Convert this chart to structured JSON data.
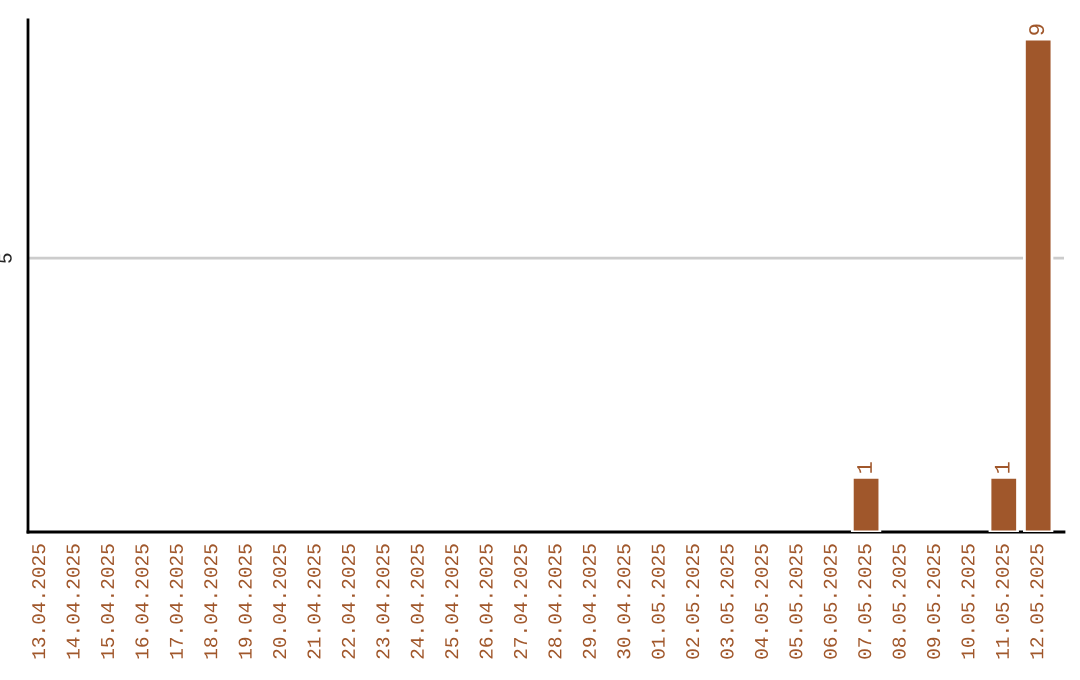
{
  "chart_data": {
    "type": "bar",
    "categories": [
      "13.04.2025",
      "14.04.2025",
      "15.04.2025",
      "16.04.2025",
      "17.04.2025",
      "18.04.2025",
      "19.04.2025",
      "20.04.2025",
      "21.04.2025",
      "22.04.2025",
      "23.04.2025",
      "24.04.2025",
      "25.04.2025",
      "26.04.2025",
      "27.04.2025",
      "28.04.2025",
      "29.04.2025",
      "30.04.2025",
      "01.05.2025",
      "02.05.2025",
      "03.05.2025",
      "04.05.2025",
      "05.05.2025",
      "06.05.2025",
      "07.05.2025",
      "08.05.2025",
      "09.05.2025",
      "10.05.2025",
      "11.05.2025",
      "12.05.2025"
    ],
    "values": [
      null,
      null,
      null,
      null,
      null,
      null,
      null,
      null,
      null,
      null,
      null,
      null,
      null,
      null,
      null,
      null,
      null,
      null,
      null,
      null,
      null,
      null,
      null,
      null,
      1,
      null,
      null,
      null,
      1,
      9
    ],
    "data_labels": true,
    "color": "#a0572b",
    "ylim": [
      0,
      9.35
    ],
    "ref_lines": [
      {
        "axis": "y",
        "value": 5,
        "label": "5",
        "color": "#cccccc"
      }
    ]
  }
}
